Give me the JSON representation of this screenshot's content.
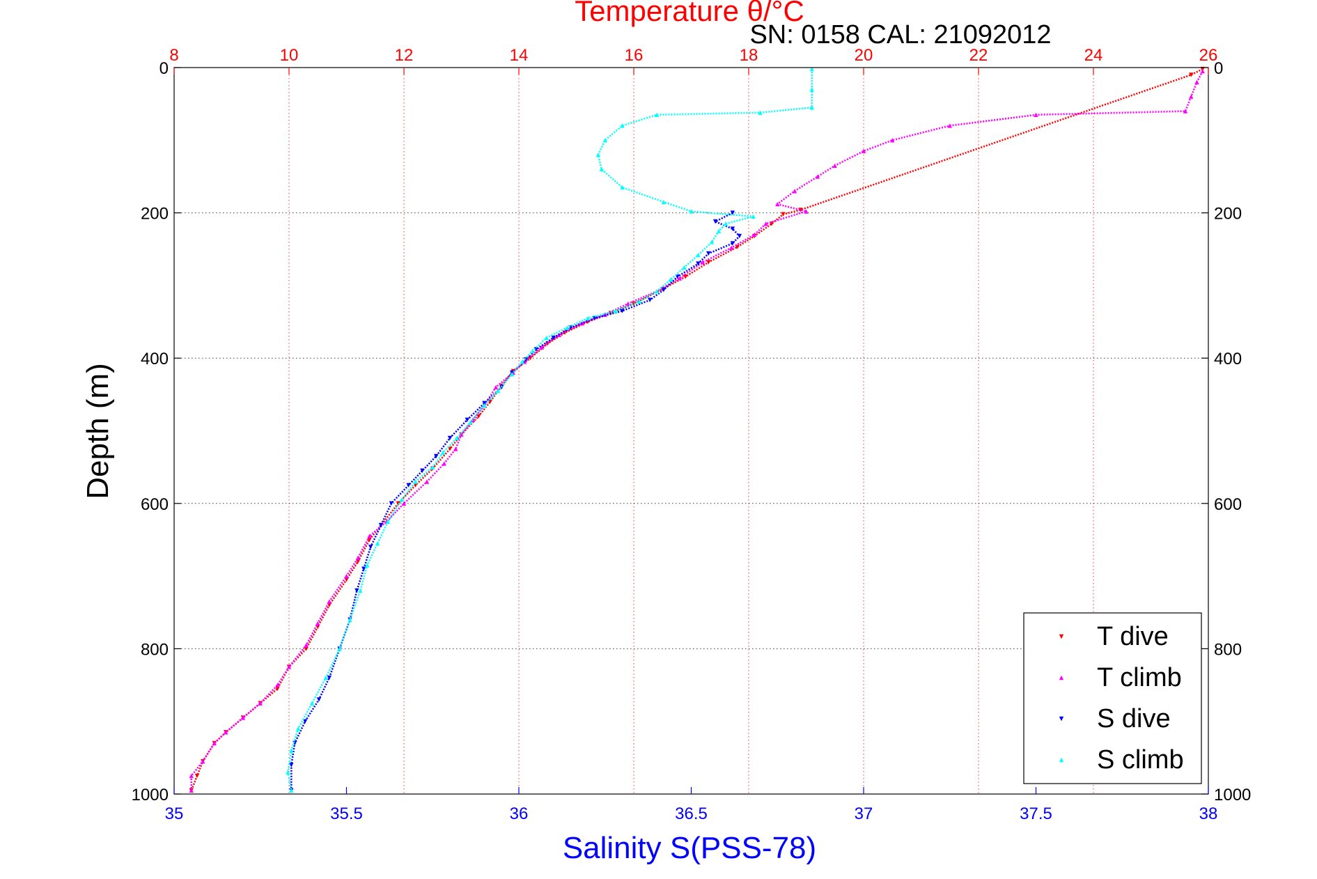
{
  "chart_data": {
    "type": "scatter",
    "title": "Temperature θ/°C",
    "subtitle": "SN: 0158  CAL: 21092012",
    "xlabel": "Salinity S(PSS-78)",
    "ylabel": "Depth (m)",
    "x_bottom": {
      "label": "Salinity S(PSS-78)",
      "range": [
        35,
        38
      ],
      "ticks": [
        35,
        35.5,
        36,
        36.5,
        37,
        37.5,
        38
      ],
      "tick_labels": [
        "35",
        "35.5",
        "36",
        "36.5",
        "37",
        "37.5",
        "38"
      ],
      "color": "#0000ff"
    },
    "x_top": {
      "label": "Temperature θ/°C",
      "range": [
        8,
        26
      ],
      "ticks": [
        8,
        10,
        12,
        14,
        16,
        18,
        20,
        22,
        24,
        26
      ],
      "tick_labels": [
        "8",
        "10",
        "12",
        "14",
        "16",
        "18",
        "20",
        "22",
        "24",
        "26"
      ],
      "color": "#ff0000"
    },
    "y": {
      "label": "Depth (m)",
      "range": [
        0,
        1000
      ],
      "reversed": true,
      "ticks": [
        0,
        200,
        400,
        600,
        800,
        1000
      ],
      "tick_labels": [
        "0",
        "200",
        "400",
        "600",
        "800",
        "1000"
      ]
    },
    "grid": true,
    "legend_position": "bottom-right",
    "series": [
      {
        "name": "T dive",
        "axis": "top",
        "color": "#ff0000",
        "marker": "triangle-down",
        "points": [
          [
            25.9,
            2
          ],
          [
            25.7,
            10
          ],
          [
            18.9,
            196
          ],
          [
            18.6,
            202
          ],
          [
            18.4,
            215
          ],
          [
            18.1,
            232
          ],
          [
            17.8,
            247
          ],
          [
            17.3,
            268
          ],
          [
            16.9,
            288
          ],
          [
            16.5,
            305
          ],
          [
            16.0,
            325
          ],
          [
            15.6,
            338
          ],
          [
            15.2,
            350
          ],
          [
            14.8,
            365
          ],
          [
            14.5,
            380
          ],
          [
            14.2,
            400
          ],
          [
            13.9,
            418
          ],
          [
            13.7,
            438
          ],
          [
            13.5,
            460
          ],
          [
            13.3,
            480
          ],
          [
            13.0,
            505
          ],
          [
            12.8,
            525
          ],
          [
            12.5,
            552
          ],
          [
            12.2,
            575
          ],
          [
            11.9,
            600
          ],
          [
            11.6,
            630
          ],
          [
            11.4,
            650
          ],
          [
            11.2,
            680
          ],
          [
            11.0,
            705
          ],
          [
            10.7,
            740
          ],
          [
            10.5,
            770
          ],
          [
            10.3,
            800
          ],
          [
            10.0,
            825
          ],
          [
            9.8,
            855
          ],
          [
            9.5,
            875
          ],
          [
            9.2,
            895
          ],
          [
            8.9,
            915
          ],
          [
            8.7,
            930
          ],
          [
            8.5,
            955
          ],
          [
            8.4,
            975
          ],
          [
            8.3,
            995
          ]
        ]
      },
      {
        "name": "T climb",
        "axis": "top",
        "color": "#ff00ff",
        "marker": "triangle-up",
        "points": [
          [
            25.9,
            5
          ],
          [
            25.8,
            20
          ],
          [
            25.7,
            40
          ],
          [
            25.6,
            60
          ],
          [
            23.0,
            65
          ],
          [
            21.5,
            80
          ],
          [
            20.5,
            100
          ],
          [
            20.0,
            115
          ],
          [
            19.5,
            135
          ],
          [
            19.2,
            150
          ],
          [
            18.8,
            170
          ],
          [
            18.5,
            188
          ],
          [
            19.0,
            198
          ],
          [
            18.3,
            215
          ],
          [
            18.1,
            230
          ],
          [
            17.7,
            248
          ],
          [
            17.2,
            268
          ],
          [
            16.8,
            290
          ],
          [
            16.4,
            308
          ],
          [
            15.9,
            325
          ],
          [
            15.5,
            340
          ],
          [
            15.1,
            352
          ],
          [
            14.7,
            368
          ],
          [
            14.4,
            385
          ],
          [
            14.1,
            405
          ],
          [
            13.9,
            420
          ],
          [
            13.6,
            440
          ],
          [
            13.4,
            465
          ],
          [
            13.2,
            485
          ],
          [
            13.0,
            505
          ],
          [
            12.9,
            525
          ],
          [
            12.7,
            545
          ],
          [
            12.4,
            570
          ],
          [
            12.0,
            600
          ],
          [
            11.7,
            625
          ],
          [
            11.4,
            645
          ],
          [
            11.2,
            675
          ],
          [
            11.0,
            700
          ],
          [
            10.7,
            735
          ],
          [
            10.5,
            765
          ],
          [
            10.3,
            795
          ],
          [
            10.0,
            825
          ],
          [
            9.8,
            850
          ],
          [
            9.5,
            875
          ],
          [
            9.2,
            895
          ],
          [
            8.9,
            915
          ],
          [
            8.7,
            930
          ],
          [
            8.5,
            955
          ],
          [
            8.3,
            975
          ],
          [
            8.3,
            995
          ]
        ]
      },
      {
        "name": "S dive",
        "axis": "bottom",
        "color": "#0000ff",
        "marker": "triangle-down",
        "points": [
          [
            36.62,
            200
          ],
          [
            36.57,
            212
          ],
          [
            36.62,
            222
          ],
          [
            36.64,
            232
          ],
          [
            36.62,
            242
          ],
          [
            36.55,
            256
          ],
          [
            36.52,
            270
          ],
          [
            36.46,
            288
          ],
          [
            36.42,
            306
          ],
          [
            36.38,
            320
          ],
          [
            36.3,
            335
          ],
          [
            36.22,
            345
          ],
          [
            36.15,
            358
          ],
          [
            36.1,
            372
          ],
          [
            36.05,
            388
          ],
          [
            36.02,
            402
          ],
          [
            35.98,
            420
          ],
          [
            35.95,
            440
          ],
          [
            35.9,
            462
          ],
          [
            35.85,
            485
          ],
          [
            35.8,
            510
          ],
          [
            35.76,
            535
          ],
          [
            35.72,
            555
          ],
          [
            35.68,
            575
          ],
          [
            35.63,
            600
          ],
          [
            35.6,
            630
          ],
          [
            35.57,
            660
          ],
          [
            35.55,
            690
          ],
          [
            35.53,
            720
          ],
          [
            35.51,
            760
          ],
          [
            35.48,
            800
          ],
          [
            35.45,
            840
          ],
          [
            35.42,
            870
          ],
          [
            35.38,
            900
          ],
          [
            35.35,
            930
          ],
          [
            35.34,
            960
          ],
          [
            35.34,
            995
          ]
        ]
      },
      {
        "name": "S climb",
        "axis": "bottom",
        "color": "#00ffff",
        "marker": "triangle-up",
        "points": [
          [
            36.85,
            2
          ],
          [
            36.85,
            30
          ],
          [
            36.85,
            55
          ],
          [
            36.7,
            62
          ],
          [
            36.4,
            65
          ],
          [
            36.3,
            80
          ],
          [
            36.25,
            100
          ],
          [
            36.23,
            120
          ],
          [
            36.24,
            140
          ],
          [
            36.3,
            165
          ],
          [
            36.42,
            185
          ],
          [
            36.5,
            198
          ],
          [
            36.68,
            205
          ],
          [
            36.6,
            215
          ],
          [
            36.58,
            225
          ],
          [
            36.56,
            240
          ],
          [
            36.52,
            258
          ],
          [
            36.48,
            275
          ],
          [
            36.44,
            292
          ],
          [
            36.4,
            308
          ],
          [
            36.35,
            322
          ],
          [
            36.28,
            335
          ],
          [
            36.2,
            345
          ],
          [
            36.14,
            358
          ],
          [
            36.08,
            372
          ],
          [
            36.04,
            390
          ],
          [
            36.01,
            405
          ],
          [
            35.98,
            422
          ],
          [
            35.94,
            445
          ],
          [
            35.9,
            465
          ],
          [
            35.86,
            488
          ],
          [
            35.82,
            510
          ],
          [
            35.78,
            530
          ],
          [
            35.75,
            550
          ],
          [
            35.7,
            570
          ],
          [
            35.66,
            595
          ],
          [
            35.62,
            625
          ],
          [
            35.59,
            655
          ],
          [
            35.56,
            685
          ],
          [
            35.54,
            720
          ],
          [
            35.51,
            760
          ],
          [
            35.48,
            800
          ],
          [
            35.44,
            840
          ],
          [
            35.4,
            875
          ],
          [
            35.36,
            910
          ],
          [
            35.34,
            940
          ],
          [
            35.33,
            970
          ],
          [
            35.34,
            995
          ]
        ]
      }
    ]
  }
}
